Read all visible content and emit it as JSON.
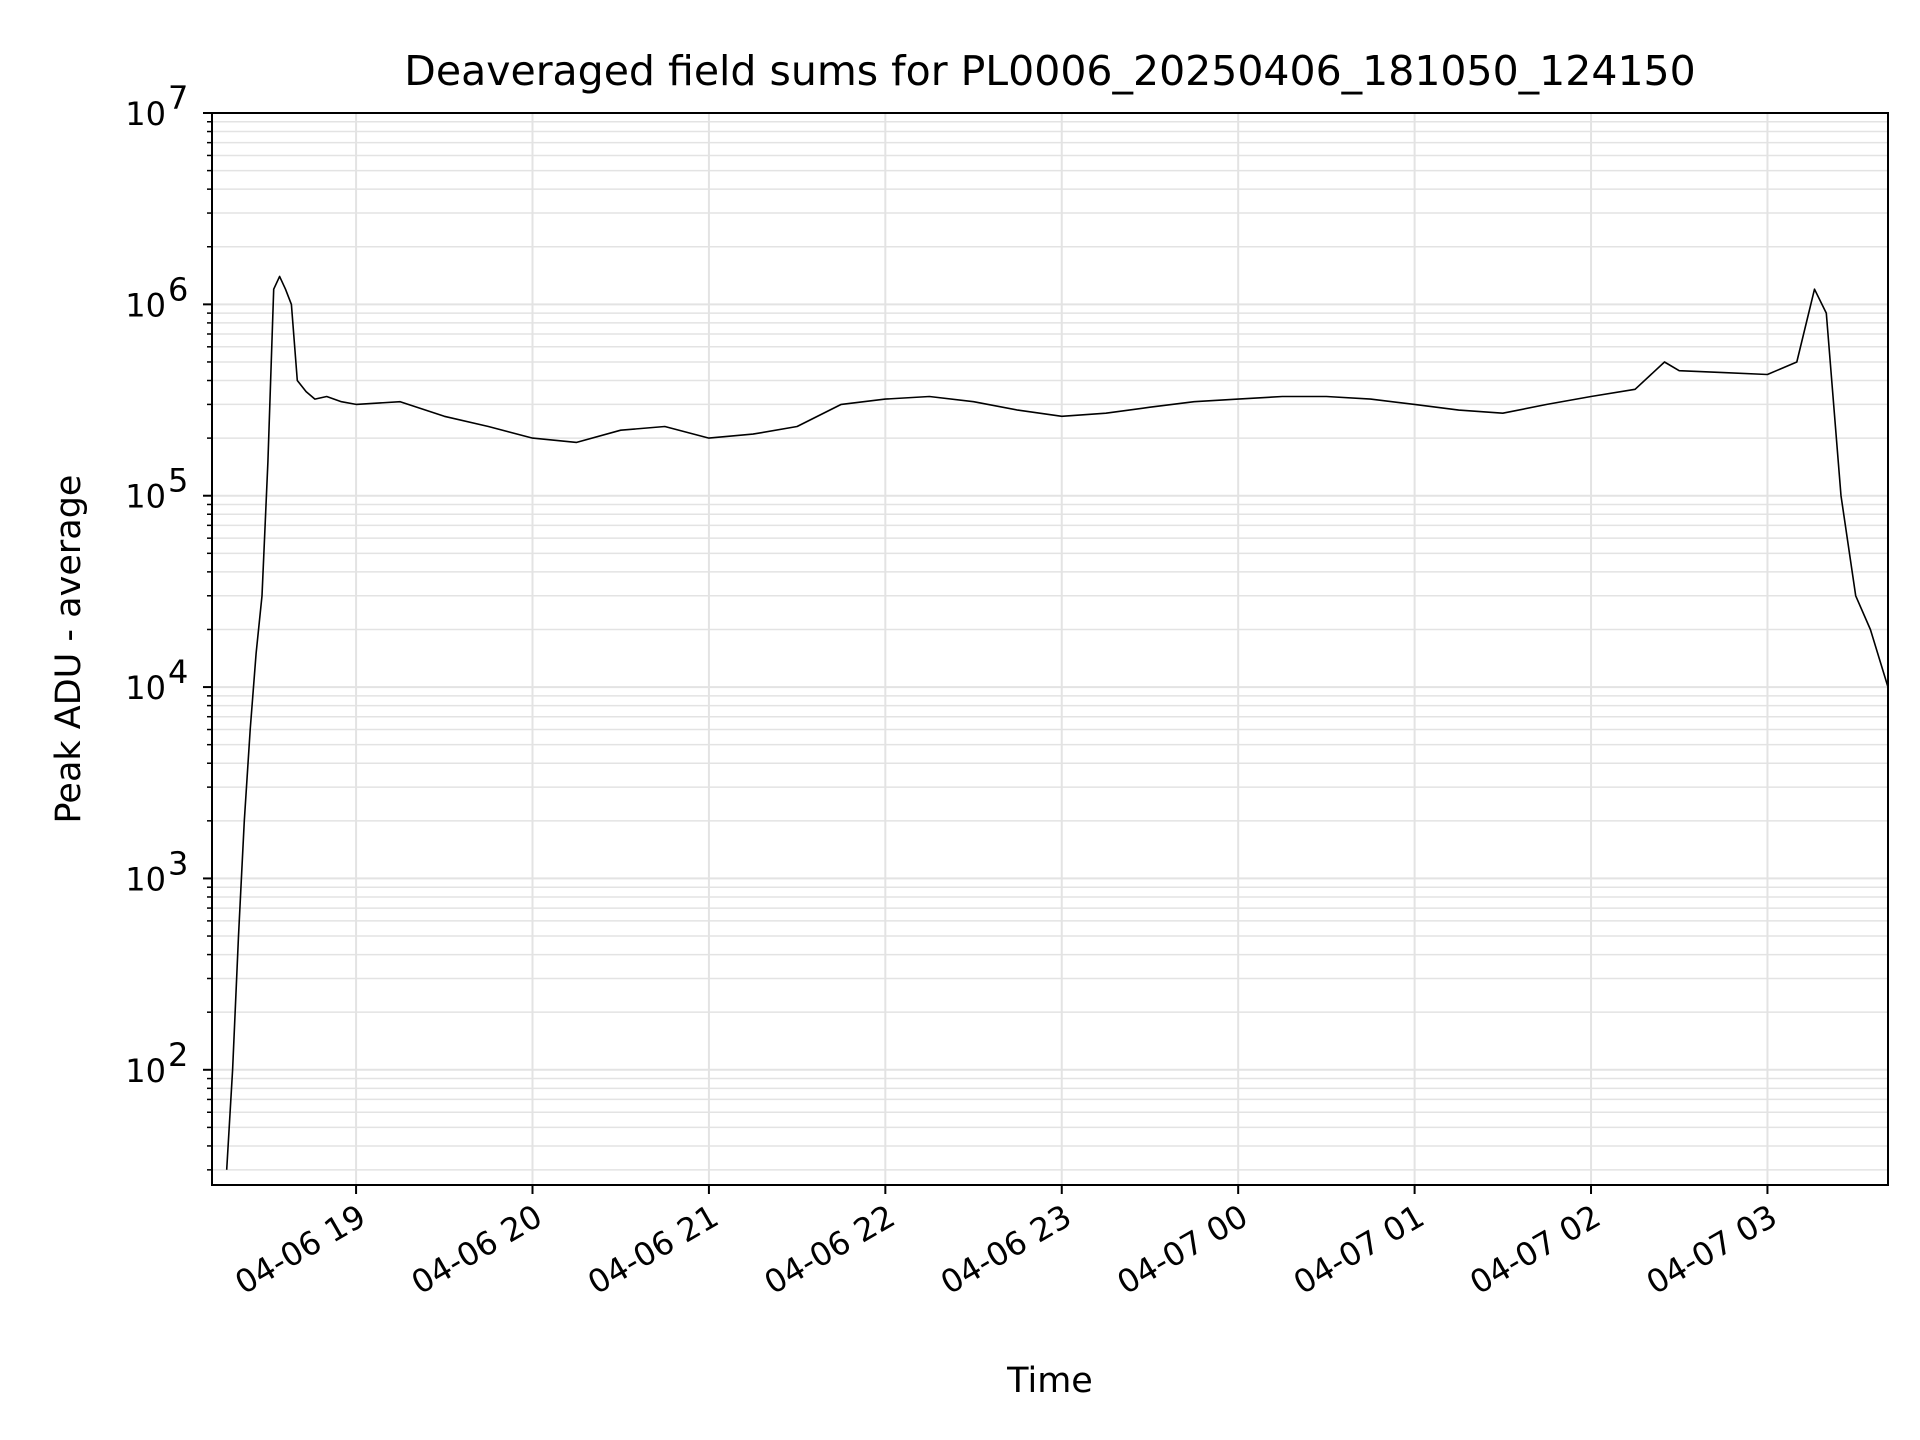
{
  "chart_data": {
    "type": "line",
    "title": "Deaveraged field sums for PL0006_20250406_181050_124150",
    "xlabel": "Time",
    "ylabel": "Peak ADU - average",
    "yscale": "log",
    "ylim": [
      25,
      10000000
    ],
    "xlim": [
      "2025-04-06T18:11:00",
      "2025-04-07T03:41:00"
    ],
    "grid": true,
    "line_color": "#000000",
    "grid_color": "#e3e3e3",
    "x_ticks": [
      {
        "t": "2025-04-06T19:00",
        "label": "04-06 19"
      },
      {
        "t": "2025-04-06T20:00",
        "label": "04-06 20"
      },
      {
        "t": "2025-04-06T21:00",
        "label": "04-06 21"
      },
      {
        "t": "2025-04-06T22:00",
        "label": "04-06 22"
      },
      {
        "t": "2025-04-06T23:00",
        "label": "04-06 23"
      },
      {
        "t": "2025-04-07T00:00",
        "label": "04-07 00"
      },
      {
        "t": "2025-04-07T01:00",
        "label": "04-07 01"
      },
      {
        "t": "2025-04-07T02:00",
        "label": "04-07 02"
      },
      {
        "t": "2025-04-07T03:00",
        "label": "04-07 03"
      }
    ],
    "y_ticks": [
      {
        "value": 100,
        "base": "10",
        "exp": "2"
      },
      {
        "value": 1000,
        "base": "10",
        "exp": "3"
      },
      {
        "value": 10000,
        "base": "10",
        "exp": "4"
      },
      {
        "value": 100000,
        "base": "10",
        "exp": "5"
      },
      {
        "value": 1000000,
        "base": "10",
        "exp": "6"
      },
      {
        "value": 10000000,
        "base": "10",
        "exp": "7"
      }
    ],
    "series": [
      {
        "x": [
          "2025-04-06T18:16",
          "2025-04-06T18:18",
          "2025-04-06T18:20",
          "2025-04-06T18:22",
          "2025-04-06T18:24",
          "2025-04-06T18:26",
          "2025-04-06T18:28",
          "2025-04-06T18:30",
          "2025-04-06T18:32",
          "2025-04-06T18:34",
          "2025-04-06T18:36",
          "2025-04-06T18:38",
          "2025-04-06T18:40",
          "2025-04-06T18:43",
          "2025-04-06T18:46",
          "2025-04-06T18:50",
          "2025-04-06T18:55",
          "2025-04-06T19:00",
          "2025-04-06T19:15",
          "2025-04-06T19:30",
          "2025-04-06T19:45",
          "2025-04-06T20:00",
          "2025-04-06T20:15",
          "2025-04-06T20:30",
          "2025-04-06T20:45",
          "2025-04-06T21:00",
          "2025-04-06T21:15",
          "2025-04-06T21:30",
          "2025-04-06T21:45",
          "2025-04-06T22:00",
          "2025-04-06T22:15",
          "2025-04-06T22:30",
          "2025-04-06T22:45",
          "2025-04-06T23:00",
          "2025-04-06T23:15",
          "2025-04-06T23:30",
          "2025-04-06T23:45",
          "2025-04-07T00:00",
          "2025-04-07T00:15",
          "2025-04-07T00:30",
          "2025-04-07T00:45",
          "2025-04-07T01:00",
          "2025-04-07T01:15",
          "2025-04-07T01:30",
          "2025-04-07T01:45",
          "2025-04-07T02:00",
          "2025-04-07T02:15",
          "2025-04-07T02:25",
          "2025-04-07T02:30",
          "2025-04-07T02:45",
          "2025-04-07T03:00",
          "2025-04-07T03:10",
          "2025-04-07T03:16",
          "2025-04-07T03:20",
          "2025-04-07T03:25",
          "2025-04-07T03:30",
          "2025-04-07T03:35",
          "2025-04-07T03:41"
        ],
        "y": [
          30,
          100,
          500,
          2000,
          6000,
          15000,
          30000,
          150000,
          1200000,
          1400000,
          1200000,
          1000000,
          400000,
          350000,
          320000,
          330000,
          310000,
          300000,
          310000,
          260000,
          230000,
          200000,
          190000,
          220000,
          230000,
          200000,
          210000,
          230000,
          300000,
          320000,
          330000,
          310000,
          280000,
          260000,
          270000,
          290000,
          310000,
          320000,
          330000,
          330000,
          320000,
          300000,
          280000,
          270000,
          300000,
          330000,
          360000,
          500000,
          450000,
          440000,
          430000,
          500000,
          1200000,
          900000,
          100000,
          30000,
          20000,
          10000
        ]
      }
    ]
  }
}
